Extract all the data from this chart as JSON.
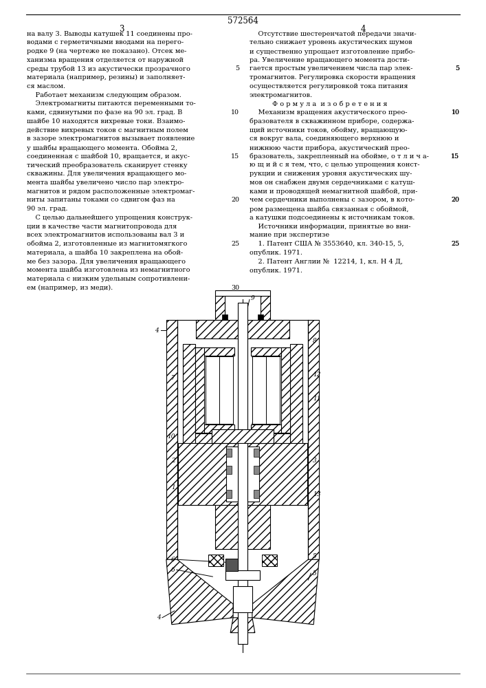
{
  "page_number": "572564",
  "col_left_num": "3",
  "col_right_num": "4",
  "background": "#ffffff",
  "text_color": "#000000",
  "left_col_lines": [
    "на валу 3. Выводы катушек 11 соединены про-",
    "водами с герметичными вводами на перего-",
    "родке 9 (на чертеже не показано). Отсек ме-",
    "ханизма вращения отделяется от наружной",
    "среды трубой 13 из акустически прозрачного",
    "материала (например, резины) и заполняет-",
    "ся маслом.",
    "    Работает механизм следующим образом.",
    "    Электромагниты питаются переменными то-",
    "ками, сдвинутыми по фазе на 90 эл. град. В",
    "шайбе 10 находятся вихревые токи. Взаимо-",
    "действие вихревых токов с магнитным полем",
    "в зазоре электромагнитов вызывает появление",
    "у шайбы вращающего момента. Обойма 2,",
    "соединенная с шайбой 10, вращается, и акус-",
    "тический преобразователь сканирует стенку",
    "скважины. Для увеличения вращающего мо-",
    "мента шайбы увеличено число пар электро-",
    "магнитов и рядом расположенные электромаг-",
    "ниты запитаны токами со сдвигом фаз на",
    "90 эл. град.",
    "    С целью дальнейшего упрощения конструк-",
    "ции в качестве части магнитопровода для",
    "всех электромагнитов использованы вал 3 и",
    "обойма 2, изготовленные из магнитомягкого",
    "материала, а шайба 10 закреплена на обой-",
    "ме без зазора. Для увеличения вращающего",
    "момента шайба изготовлена из немагнитного",
    "материала с низким удельным сопротивлени-",
    "ем (например, из меди)."
  ],
  "right_col_lines": [
    "    Отсутствие шестеренчатой передачи значи-",
    "тельно снижает уровень акустических шумов",
    "и существенно упрощает изготовление прибо-",
    "ра. Увеличение вращающего момента дости-",
    "гается простым увеличением числа пар элек-",
    "тромагнитов. Регулировка скорости вращения",
    "осуществляется регулировкой тока питания",
    "электромагнитов.",
    "         Ф о р м у л а  и з о б р е т е н и я",
    "    Механизм вращения акустического прео-",
    "бразователя в скважинном приборе, содержа-",
    "щий источники токов, обойму, вращающую-",
    "ся вокруг вала, соединяющего верхнюю и",
    "нижнюю части прибора, акустический прео-",
    "бразователь, закрепленный на обойме, о т л и ч а-",
    "ю щ и й с я тем, что, с целью упрощения конст-",
    "рукции и снижения уровня акустических шу-",
    "мов он снабжен двумя сердечниками с катуш-",
    "ками и проводящей немагнитной шайбой, при-",
    "чем сердечники выполнены с зазором, в кото-",
    "ром размещена шайба связанная с обоймой,",
    "а катушки подсоединены к источникам токов.",
    "    Источники информации, принятые во вни-",
    "мание при экспертизе",
    "    1. Патент США № 3553640, кл. 340-15, 5,",
    "опублик. 1971.",
    "    2. Патент Англии №  12214, 1, кл. Н 4 Д,",
    "опублик. 1971."
  ],
  "line_number_indices_left": [
    4,
    9,
    14,
    19,
    24,
    29
  ],
  "line_number_indices_right": [
    4,
    9,
    14,
    19,
    24
  ],
  "line_number_values": [
    "5",
    "10",
    "15",
    "20",
    "25",
    "30"
  ]
}
